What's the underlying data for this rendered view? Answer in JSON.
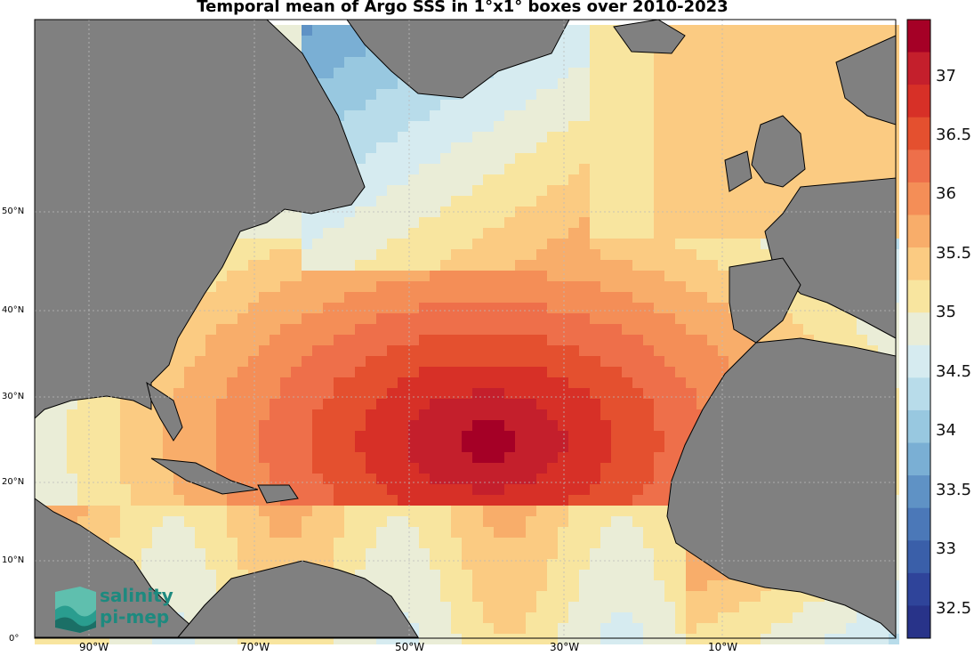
{
  "title": "Temporal mean of Argo SSS in 1°x1° boxes over 2010-2023",
  "lat_labels": [
    {
      "text": "50°N",
      "id": "lat-50"
    },
    {
      "text": "40°N",
      "id": "lat-40"
    },
    {
      "text": "30°N",
      "id": "lat-30"
    },
    {
      "text": "20°N",
      "id": "lat-20"
    },
    {
      "text": "10°N",
      "id": "lat-10"
    },
    {
      "text": "0°",
      "id": "lat-0"
    }
  ],
  "lon_labels": [
    {
      "text": "90°W",
      "id": "lon-90w"
    },
    {
      "text": "70°W",
      "id": "lon-70w"
    },
    {
      "text": "50°W",
      "id": "lon-50w"
    },
    {
      "text": "30°W",
      "id": "lon-30w"
    },
    {
      "text": "10°W",
      "id": "lon-10w"
    }
  ],
  "colorbar": {
    "labels": [
      "37",
      "36.5",
      "36",
      "35.5",
      "35",
      "34.5",
      "34",
      "33.5",
      "33",
      "32.5"
    ],
    "colors_top_to_bottom": [
      "#a50026",
      "#c41f2c",
      "#d73027",
      "#e4502f",
      "#ee6f4a",
      "#f48e57",
      "#f8ad6a",
      "#fbcb82",
      "#f8e59f",
      "#eaedd7",
      "#d6ebf0",
      "#b8dcea",
      "#98c8e0",
      "#7aafd4",
      "#5f92c5",
      "#4b78b8",
      "#3a5fa9",
      "#2f449a",
      "#283389"
    ],
    "range": [
      32.25,
      37.4
    ]
  },
  "logo": {
    "line1": "salinity",
    "line2": "pi-mep"
  }
}
